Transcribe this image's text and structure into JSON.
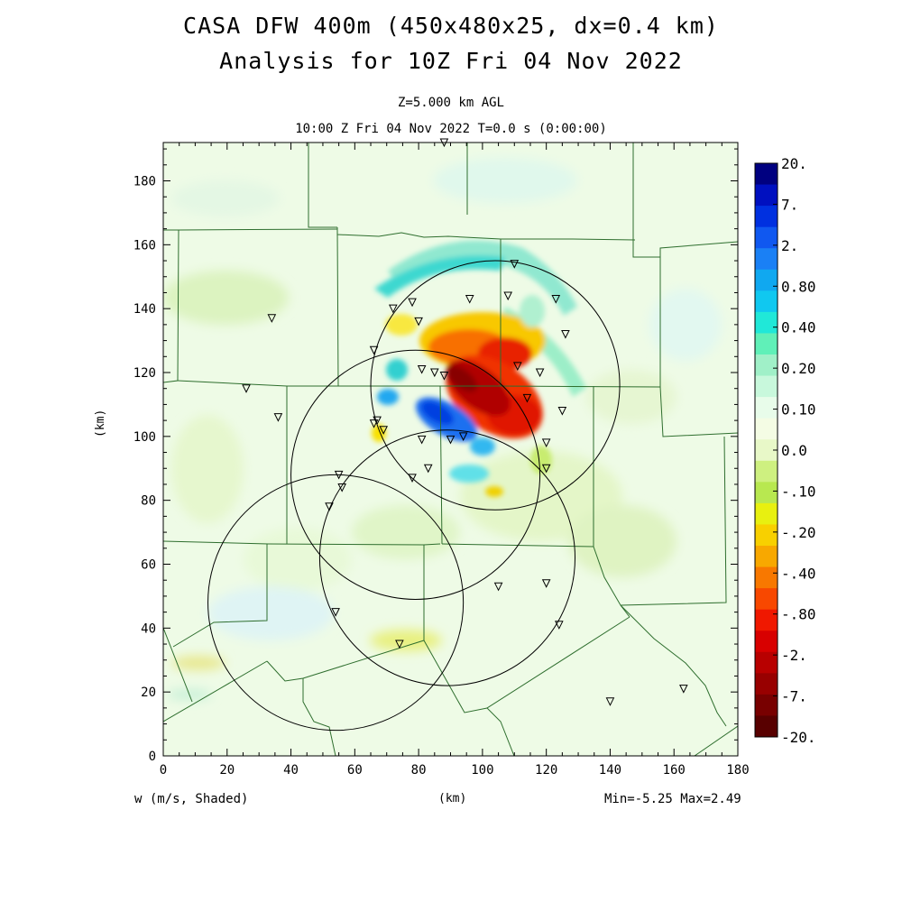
{
  "header": {
    "title_line1": "CASA DFW 400m (450x480x25, dx=0.4 km)",
    "title_line2": "Analysis for 10Z Fri 04 Nov 2022",
    "level": "Z=5.000 km AGL",
    "time": "10:00 Z Fri 04 Nov 2022    T=0.0 s (0:00:00)"
  },
  "axes": {
    "x_ticks": [
      "0",
      "20",
      "40",
      "60",
      "80",
      "100",
      "120",
      "140",
      "160",
      "180"
    ],
    "y_ticks": [
      "0",
      "20",
      "40",
      "60",
      "80",
      "100",
      "120",
      "140",
      "160",
      "180"
    ],
    "x_unit": "(km)",
    "y_unit": "(km)"
  },
  "footer": {
    "variable": "w (m/s, Shaded)",
    "stats": "Min=-5.25 Max=2.49"
  },
  "colorbar": {
    "labels": [
      "20.",
      "7.",
      "2.",
      "0.80",
      "0.40",
      "0.20",
      "0.10",
      "0.0",
      "-.10",
      "-.20",
      "-.40",
      "-.80",
      "-2.",
      "-7.",
      "-20."
    ],
    "colors": [
      "#000080",
      "#0010c0",
      "#0030e0",
      "#1058f0",
      "#1a80f5",
      "#10a8f0",
      "#10c8f0",
      "#20e8d8",
      "#60f0b8",
      "#a0f0c8",
      "#c8f8dc",
      "#e8fcea",
      "#f4fce4",
      "#e8f8c8",
      "#cef080",
      "#b8e850",
      "#e8f010",
      "#f8d000",
      "#f8a800",
      "#f87800",
      "#f84800",
      "#f01800",
      "#d80000",
      "#b80000",
      "#980000",
      "#780000",
      "#580000"
    ]
  },
  "map": {
    "radar_ranges_km": [
      {
        "cx": 104,
        "cy": 116,
        "r": 39
      },
      {
        "cx": 79,
        "cy": 88,
        "r": 39
      },
      {
        "cx": 54,
        "cy": 48,
        "r": 40
      },
      {
        "cx": 89,
        "cy": 62,
        "r": 40
      }
    ],
    "stations_km": [
      [
        88,
        192
      ],
      [
        110,
        154
      ],
      [
        108,
        144
      ],
      [
        123,
        143
      ],
      [
        96,
        143
      ],
      [
        78,
        142
      ],
      [
        72,
        140
      ],
      [
        80,
        136
      ],
      [
        34,
        137
      ],
      [
        126,
        132
      ],
      [
        66,
        127
      ],
      [
        111,
        122
      ],
      [
        81,
        121
      ],
      [
        85,
        120
      ],
      [
        88,
        119
      ],
      [
        118,
        120
      ],
      [
        114,
        112
      ],
      [
        26,
        115
      ],
      [
        125,
        108
      ],
      [
        36,
        106
      ],
      [
        67,
        105
      ],
      [
        66,
        104
      ],
      [
        69,
        102
      ],
      [
        81,
        99
      ],
      [
        90,
        99
      ],
      [
        94,
        100
      ],
      [
        120,
        98
      ],
      [
        83,
        90
      ],
      [
        120,
        90
      ],
      [
        78,
        87
      ],
      [
        55,
        88
      ],
      [
        56,
        84
      ],
      [
        52,
        78
      ],
      [
        120,
        54
      ],
      [
        105,
        53
      ],
      [
        54,
        45
      ],
      [
        124,
        41
      ],
      [
        74,
        35
      ],
      [
        140,
        17
      ],
      [
        163,
        21
      ]
    ]
  }
}
